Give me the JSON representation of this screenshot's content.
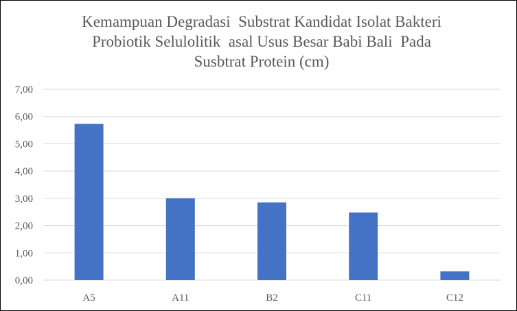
{
  "chart_data": {
    "type": "bar",
    "title_lines": [
      "Kemampuan Degradasi  Substrat Kandidat Isolat Bakteri",
      "Probiotik Selulolitik  asal Usus Besar Babi Bali  Pada",
      "Susbtrat Protein (cm)"
    ],
    "categories": [
      "A5",
      "A11",
      "B2",
      "C11",
      "C12"
    ],
    "values": [
      5.73,
      3.0,
      2.85,
      2.48,
      0.32
    ],
    "ylim": [
      0,
      7
    ],
    "yticks": [
      0,
      1,
      2,
      3,
      4,
      5,
      6,
      7
    ],
    "ytick_labels": [
      "0,00",
      "1,00",
      "2,00",
      "3,00",
      "4,00",
      "5,00",
      "6,00",
      "7,00"
    ],
    "grid": true,
    "legend": "none",
    "bar_color": "#4472c4",
    "grid_color": "#d9d9d9"
  }
}
